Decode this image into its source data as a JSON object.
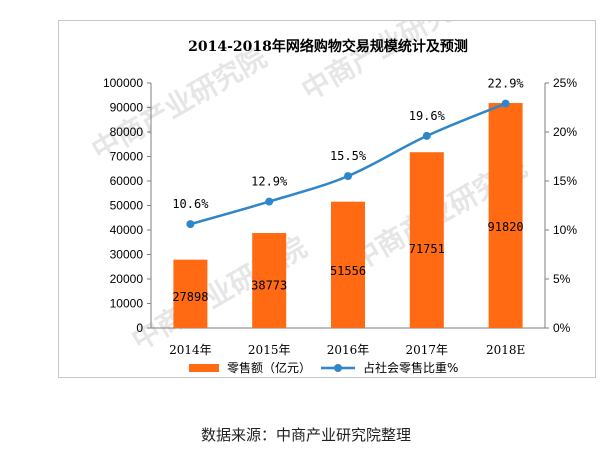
{
  "chart_data": {
    "type": "bar+line",
    "title": "2014-2018年网络购物交易规模统计及预测",
    "categories": [
      "2014年",
      "2015年",
      "2016年",
      "2017年",
      "2018E"
    ],
    "series": [
      {
        "name": "零售额（亿元）",
        "type": "bar",
        "axis": "left",
        "values": [
          27898,
          38773,
          51556,
          71751,
          91820
        ],
        "labels": [
          "27898",
          "38773",
          "51556",
          "71751",
          "91820"
        ]
      },
      {
        "name": "占社会零售比重%",
        "type": "line",
        "axis": "right",
        "values": [
          10.6,
          12.9,
          15.5,
          19.6,
          22.9
        ],
        "labels": [
          "10.6%",
          "12.9%",
          "15.5%",
          "19.6%",
          "22.9%"
        ]
      }
    ],
    "y_left": {
      "min": 0,
      "max": 100000,
      "ticks": [
        "0",
        "10000",
        "20000",
        "30000",
        "40000",
        "50000",
        "60000",
        "70000",
        "80000",
        "90000",
        "100000"
      ]
    },
    "y_right": {
      "min": 0,
      "max": 25,
      "ticks": [
        "0%",
        "5%",
        "10%",
        "15%",
        "20%",
        "25%"
      ]
    },
    "legend_position": "bottom",
    "grid": false
  },
  "watermark": {
    "text": "中商产业研究院"
  },
  "colors": {
    "bar": "#ff6a13",
    "line": "#2f86c9",
    "axis": "#7f7f7f"
  },
  "source_note": "数据来源：中商产业研究院整理"
}
